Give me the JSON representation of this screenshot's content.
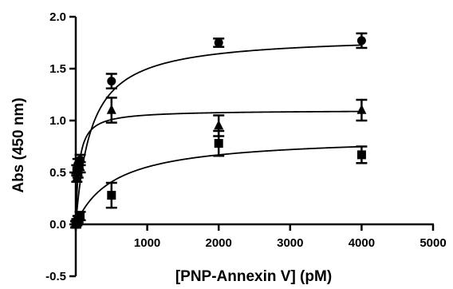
{
  "chart_data": {
    "type": "scatter",
    "title": "",
    "xlabel": "[PNP-Annexin V] (pM)",
    "ylabel": "Abs (450 nm)",
    "xlim": [
      0,
      5000
    ],
    "ylim": [
      -0.5,
      2.0
    ],
    "xticks": [
      0,
      1000,
      2000,
      3000,
      4000,
      5000
    ],
    "yticks": [
      -0.5,
      0.0,
      0.5,
      1.0,
      1.5,
      2.0
    ],
    "xtick_labels": [
      "0",
      "1000",
      "2000",
      "3000",
      "4000",
      "5000"
    ],
    "ytick_labels": [
      "-0.5",
      "0.0",
      "0.5",
      "1.0",
      "1.5",
      "2.0"
    ],
    "grid": false,
    "legend": "none",
    "series": [
      {
        "marker": "circle",
        "color": "#000000",
        "points": [
          {
            "x": 0,
            "y": 0.0,
            "err": 0.03
          },
          {
            "x": 15,
            "y": 0.52,
            "err": 0.05
          },
          {
            "x": 31,
            "y": 0.58,
            "err": 0.05
          },
          {
            "x": 62,
            "y": 0.62,
            "err": 0.05
          },
          {
            "x": 500,
            "y": 1.38,
            "err": 0.07
          },
          {
            "x": 2000,
            "y": 1.75,
            "err": 0.04
          },
          {
            "x": 4000,
            "y": 1.77,
            "err": 0.07
          }
        ],
        "fit": {
          "bmax": 1.82,
          "kd": 215
        }
      },
      {
        "marker": "triangle",
        "color": "#000000",
        "points": [
          {
            "x": 0,
            "y": 0.0,
            "err": 0.03
          },
          {
            "x": 15,
            "y": 0.45,
            "err": 0.04
          },
          {
            "x": 31,
            "y": 0.5,
            "err": 0.05
          },
          {
            "x": 62,
            "y": 0.55,
            "err": 0.05
          },
          {
            "x": 500,
            "y": 1.1,
            "err": 0.12
          },
          {
            "x": 2000,
            "y": 0.95,
            "err": 0.1
          },
          {
            "x": 4000,
            "y": 1.1,
            "err": 0.1
          }
        ],
        "fit": {
          "bmax": 1.1,
          "kd": 45
        }
      },
      {
        "marker": "square",
        "color": "#000000",
        "points": [
          {
            "x": 0,
            "y": 0.0,
            "err": 0.03
          },
          {
            "x": 15,
            "y": 0.02,
            "err": 0.03
          },
          {
            "x": 31,
            "y": 0.05,
            "err": 0.03
          },
          {
            "x": 62,
            "y": 0.08,
            "err": 0.04
          },
          {
            "x": 500,
            "y": 0.28,
            "err": 0.12
          },
          {
            "x": 2000,
            "y": 0.78,
            "err": 0.12
          },
          {
            "x": 4000,
            "y": 0.67,
            "err": 0.08
          }
        ],
        "fit": {
          "bmax": 0.85,
          "kd": 540
        }
      }
    ]
  }
}
